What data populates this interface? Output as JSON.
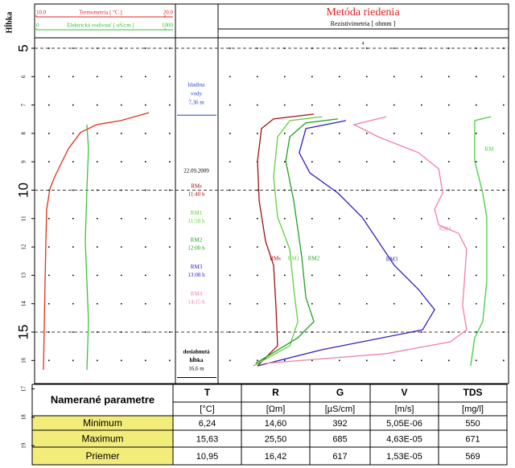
{
  "depth_axis": {
    "label": "Hĺbka",
    "ticks": [
      5,
      6,
      7,
      8,
      9,
      10,
      11,
      12,
      13,
      14,
      15,
      16,
      17,
      18,
      19
    ],
    "major_ticks": [
      5,
      10,
      15
    ]
  },
  "thermo_panel": {
    "temperature_axis": {
      "label": "Termometria [ °C ]",
      "lim": [
        10,
        20
      ],
      "ticks": [
        {
          "value": 10,
          "label": "10.0"
        },
        {
          "value": 20,
          "label": "20.0"
        }
      ],
      "color": "#e02020"
    },
    "conductivity_axis": {
      "label": "Elektrická vodivosť [ uS/cm ]",
      "lim": [
        0,
        1000
      ],
      "ticks": [
        0,
        1000
      ],
      "color": "#30c030"
    },
    "temperature": {
      "color": "#e03018",
      "depth": [
        7.27,
        7.55,
        7.69,
        7.97,
        8.54,
        9.11,
        9.53,
        9.96,
        10.67,
        11.8,
        13.22,
        14.63,
        16.33
      ],
      "values": [
        18.75,
        16.56,
        14.69,
        13.44,
        12.5,
        11.88,
        11.44,
        11.06,
        10.81,
        10.75,
        10.69,
        10.63,
        10.56
      ]
    },
    "conductivity": {
      "color": "#40c040",
      "depth": [
        7.69,
        8.54,
        9.96,
        11.8,
        13.22,
        14.63,
        16.33
      ],
      "values": [
        394,
        406,
        394,
        381,
        394,
        406,
        394
      ]
    }
  },
  "middle_panel": {
    "water_level": {
      "text": [
        "hladina",
        "vody",
        "7,36 m"
      ],
      "depth": 7.36,
      "color": "#2040d0"
    },
    "date": "22.09.2009",
    "measurements": [
      {
        "name": "RMs",
        "time": "11:40 h",
        "color": "#a01010"
      },
      {
        "name": "RM1",
        "time": "11:50 h",
        "color": "#60d040"
      },
      {
        "name": "RM2",
        "time": "12:00 h",
        "color": "#20a020"
      },
      {
        "name": "RM3",
        "time": "13:08 h",
        "color": "#3020c0"
      },
      {
        "name": "RM4",
        "time": "14:15 h",
        "color": "#f080a0"
      }
    ],
    "final_depth": {
      "text": [
        "dosiahnutá",
        "hĺbka",
        "16,6 m"
      ],
      "depth": 16.6
    }
  },
  "resistivity_panel": {
    "title": "Metóda riedenia",
    "axis_label": "Rezistivimetria [ ohmm ]",
    "top_mark": "4",
    "series": [
      {
        "name": "RMs",
        "color": "#a01010",
        "depth": [
          7.32,
          7.49,
          7.83,
          8.97,
          10.38,
          11.8,
          12.65,
          14.07,
          15.48,
          16.19
        ],
        "values": [
          33,
          19,
          14.8,
          13.4,
          14,
          16.2,
          19,
          19.8,
          20.4,
          13.4
        ]
      },
      {
        "name": "RM1",
        "color": "#60d040",
        "depth": [
          7.41,
          7.55,
          8.12,
          9.53,
          10.95,
          12.08,
          13.5,
          14.63,
          15.48,
          16.19
        ],
        "values": [
          35.8,
          24.6,
          20.4,
          19,
          20.4,
          24.6,
          26,
          27.4,
          24.6,
          12
        ]
      },
      {
        "name": "RM2",
        "color": "#20a020",
        "depth": [
          7.49,
          7.63,
          8.12,
          8.97,
          10.38,
          12.37,
          13.78,
          14.63,
          15.2,
          16.1
        ],
        "values": [
          41.3,
          30.2,
          24.6,
          23.2,
          26,
          28.8,
          30.2,
          33,
          27.4,
          12.8
        ]
      },
      {
        "name": "RM3",
        "color": "#3020c0",
        "depth": [
          7.55,
          7.83,
          8.68,
          9.39,
          10.1,
          10.95,
          11.8,
          12.65,
          13.5,
          14.21,
          14.92,
          15.62,
          16.19
        ],
        "values": [
          44.1,
          30.2,
          27.9,
          31.6,
          41.3,
          49.7,
          55.3,
          60.9,
          69.3,
          74.9,
          70.7,
          35.8,
          13.4
        ]
      },
      {
        "name": "RM4",
        "color": "#f080a0",
        "depth": [
          7.41,
          7.69,
          8.12,
          8.68,
          9.25,
          10.1,
          10.67,
          11.23,
          11.52,
          12.08,
          14.07,
          14.92,
          15.34,
          15.76,
          16.1
        ],
        "values": [
          58.1,
          46.9,
          55.3,
          69.3,
          76.3,
          77.7,
          74.9,
          76.3,
          83.2,
          86,
          84.6,
          86,
          80.4,
          58.1,
          16.2
        ]
      },
      {
        "name": "RM",
        "color": "#40d040",
        "depth": [
          7.41,
          7.55,
          8.97,
          10.1,
          10.95,
          13.22,
          14.63,
          15.2,
          16.19
        ],
        "values": [
          94.4,
          88.8,
          88.8,
          91.6,
          93,
          93,
          91.6,
          88.8,
          87.4
        ]
      }
    ]
  },
  "table": {
    "header": [
      "Namerané parametre",
      "T",
      "R",
      "G",
      "V",
      "TDS"
    ],
    "units": [
      "[°C]",
      "[Ωm]",
      "[µS/cm]",
      "[m/s]",
      "[mg/l]"
    ],
    "rows": [
      [
        "Minimum",
        "6,24",
        "14,60",
        "392",
        "5,05E-06",
        "550"
      ],
      [
        "Maximum",
        "15,63",
        "25,50",
        "685",
        "4,63E-05",
        "671"
      ],
      [
        "Priemer",
        "10,95",
        "16,42",
        "617",
        "1,53E-05",
        "569"
      ]
    ]
  }
}
